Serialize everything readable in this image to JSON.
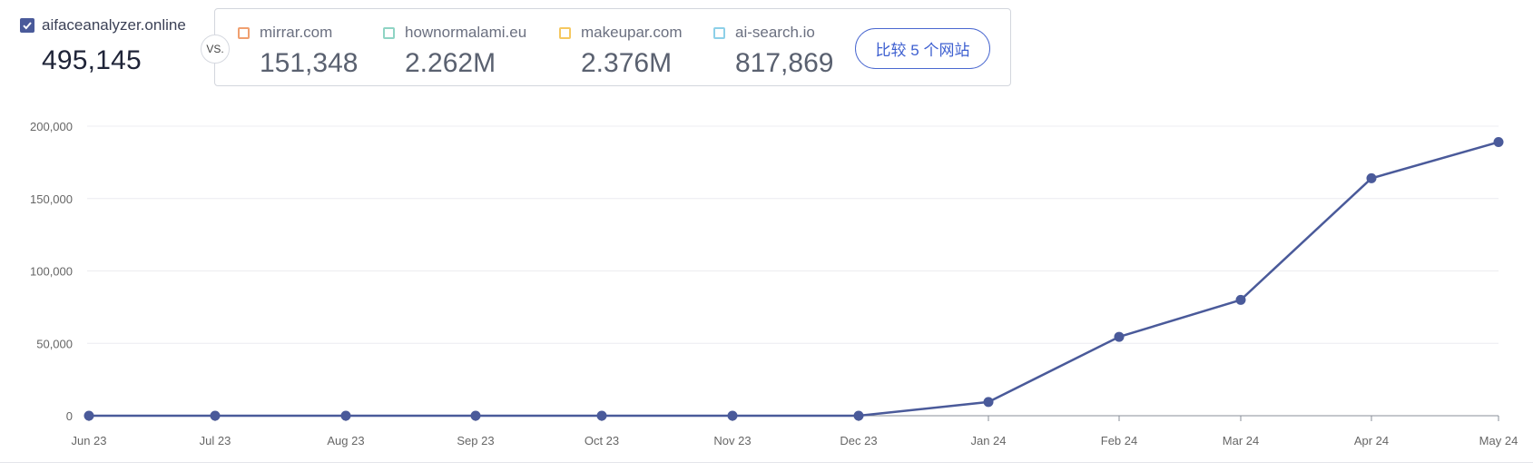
{
  "primary": {
    "name": "aifaceanalyzer.online",
    "value": "495,145",
    "color": "#4a5a9a"
  },
  "vs_label": "VS.",
  "competitors": [
    {
      "name": "mirrar.com",
      "value": "151,348",
      "color": "#f0a070"
    },
    {
      "name": "hownormalami.eu",
      "value": "2.262M",
      "color": "#8fd4c4"
    },
    {
      "name": "makeupar.com",
      "value": "2.376M",
      "color": "#f5c860"
    },
    {
      "name": "ai-search.io",
      "value": "817,869",
      "color": "#8dd0e8"
    }
  ],
  "compare_button": "比较 5 个网站",
  "chart_data": {
    "type": "line",
    "x": [
      "Jun 23",
      "Jul 23",
      "Aug 23",
      "Sep 23",
      "Oct 23",
      "Nov 23",
      "Dec 23",
      "Jan 24",
      "Feb 24",
      "Mar 24",
      "Apr 24",
      "May 24"
    ],
    "series": [
      {
        "values": [
          0,
          0,
          0,
          0,
          0,
          0,
          0,
          9500,
          54500,
          80000,
          164000,
          189000
        ],
        "color": "#4a5a9a"
      }
    ],
    "yticks": [
      0,
      50000,
      100000,
      150000,
      200000
    ],
    "ytick_labels": [
      "0",
      "50,000",
      "100,000",
      "150,000",
      "200,000"
    ],
    "ylim": [
      0,
      200000
    ],
    "grid": true,
    "legend": "none"
  }
}
